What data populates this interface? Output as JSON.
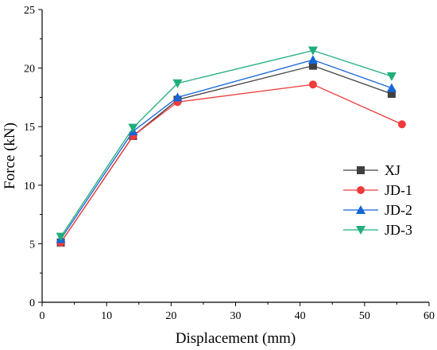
{
  "chart_data": {
    "type": "line",
    "title": "",
    "xlabel": "Displacement (mm)",
    "ylabel": "Force (kN)",
    "xlim": [
      0,
      60
    ],
    "ylim": [
      0,
      25
    ],
    "xticks": [
      0,
      10,
      20,
      30,
      40,
      50,
      60
    ],
    "yticks": [
      0,
      5,
      10,
      15,
      20,
      25
    ],
    "grid": false,
    "legend_position": "center-right",
    "series": [
      {
        "name": "XJ",
        "color": "#404040",
        "marker": "square",
        "points": [
          [
            2.9,
            5.1
          ],
          [
            14.1,
            14.2
          ],
          [
            21.0,
            17.3
          ],
          [
            42.0,
            20.2
          ],
          [
            54.2,
            17.8
          ]
        ]
      },
      {
        "name": "JD-1",
        "color": "#ee3b3b",
        "marker": "circle",
        "points": [
          [
            2.9,
            5.1
          ],
          [
            14.1,
            14.2
          ],
          [
            21.0,
            17.1
          ],
          [
            42.0,
            18.6
          ],
          [
            55.8,
            15.2
          ]
        ]
      },
      {
        "name": "JD-2",
        "color": "#1565d8",
        "marker": "triangle-up",
        "points": [
          [
            2.9,
            5.4
          ],
          [
            14.1,
            14.6
          ],
          [
            21.0,
            17.5
          ],
          [
            42.0,
            20.7
          ],
          [
            54.2,
            18.3
          ]
        ]
      },
      {
        "name": "JD-3",
        "color": "#1fae7a",
        "marker": "triangle-down",
        "points": [
          [
            2.9,
            5.6
          ],
          [
            14.1,
            14.9
          ],
          [
            21.0,
            18.7
          ],
          [
            42.0,
            21.5
          ],
          [
            54.2,
            19.3
          ]
        ]
      }
    ]
  }
}
